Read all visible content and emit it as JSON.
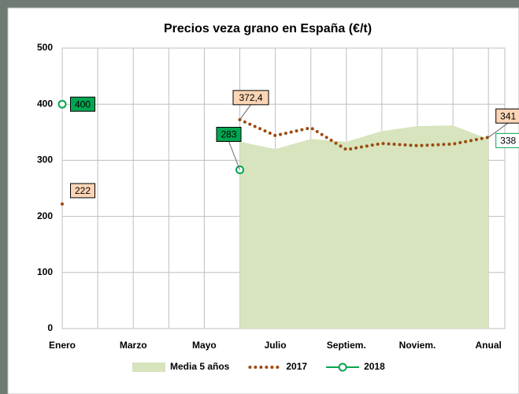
{
  "chart_data": {
    "type": "line",
    "title": "Precios veza grano en España (€/t)",
    "categories": [
      "Enero",
      null,
      "Marzo",
      null,
      "Mayo",
      null,
      "Julio",
      null,
      "Septiem.",
      null,
      "Noviem.",
      null,
      "Anual"
    ],
    "ylim": [
      0,
      500
    ],
    "yticks": [
      0,
      100,
      200,
      300,
      400,
      500
    ],
    "grid": true,
    "legend": "bottom",
    "series": [
      {
        "name": "Media 5 años",
        "type": "area",
        "color": "#d7e4bd",
        "values": [
          null,
          null,
          null,
          null,
          null,
          333,
          320,
          338,
          333,
          352,
          361,
          362,
          338
        ]
      },
      {
        "name": "2017",
        "type": "dotted",
        "color": "#9c4a0f",
        "values": [
          222,
          null,
          null,
          null,
          null,
          372.4,
          344,
          358,
          319,
          330,
          326,
          329,
          341
        ],
        "value_labels": [
          null,
          null,
          null,
          null,
          null,
          "372,4",
          null,
          null,
          null,
          null,
          null,
          null,
          null
        ]
      },
      {
        "name": "2018",
        "type": "marker-line",
        "color": "#00a650",
        "values": [
          400,
          null,
          null,
          null,
          null,
          283,
          null,
          null,
          null,
          null,
          null,
          null,
          null
        ]
      }
    ]
  }
}
